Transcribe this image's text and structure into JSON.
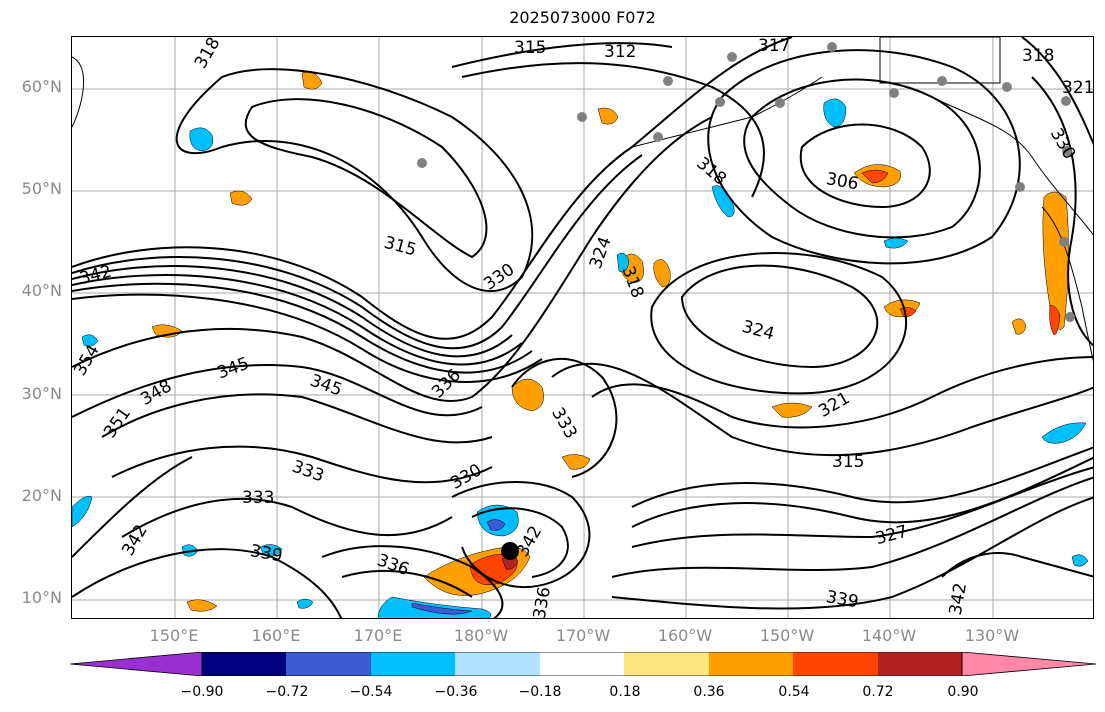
{
  "title": "2025073000 F072",
  "lat_labels": [
    "60°N",
    "50°N",
    "40°N",
    "30°N",
    "20°N",
    "10°N"
  ],
  "lon_labels": [
    "150°E",
    "160°E",
    "170°E",
    "180°W",
    "170°W",
    "160°W",
    "150°W",
    "140°W",
    "130°W"
  ],
  "colorbar": {
    "tick_labels": [
      "−0.90",
      "−0.72",
      "−0.54",
      "−0.36",
      "−0.18",
      "0.18",
      "0.36",
      "0.54",
      "0.72",
      "0.90"
    ],
    "colors": [
      "#9b30d0",
      "#000080",
      "#3a5bd4",
      "#00bfff",
      "#b0e2ff",
      "#ffffff",
      "#ffe680",
      "#ffa000",
      "#ff4500",
      "#b22222",
      "#ff88aa"
    ]
  },
  "contour_labels": [
    "318",
    "315",
    "312",
    "317",
    "318",
    "321",
    "330",
    "306",
    "315",
    "318",
    "324",
    "330",
    "318",
    "324",
    "342",
    "354",
    "345",
    "345",
    "336",
    "348",
    "351",
    "333",
    "333",
    "330",
    "339",
    "342",
    "336",
    "336",
    "342",
    "321",
    "315",
    "327",
    "339",
    "342",
    "333"
  ],
  "colors": {
    "grid": "#a8a8a8",
    "contour": "#000000",
    "axis_label": "#8a8a8a",
    "station": "#808080"
  },
  "icons": {
    "storm_center": "black-dot",
    "stations": "gray-dots"
  }
}
